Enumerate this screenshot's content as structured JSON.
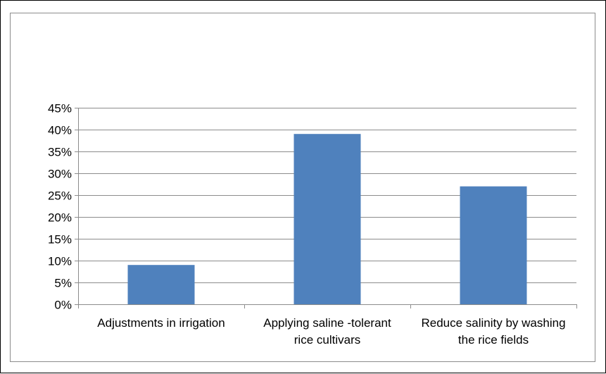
{
  "chart_data": {
    "type": "bar",
    "categories": [
      [
        "Adjustments in irrigation"
      ],
      [
        "Applying saline -tolerant",
        "rice cultivars"
      ],
      [
        "Reduce salinity by washing",
        "the rice fields"
      ]
    ],
    "values": [
      0.09,
      0.39,
      0.27
    ],
    "ylim": [
      0,
      0.45
    ],
    "yticks": [
      0,
      0.05,
      0.1,
      0.15,
      0.2,
      0.25,
      0.3,
      0.35,
      0.4,
      0.45
    ],
    "ytick_labels": [
      "0%",
      "5%",
      "10%",
      "15%",
      "20%",
      "25%",
      "30%",
      "35%",
      "40%",
      "45%"
    ],
    "grid": true,
    "bar_color": "#4f81bd",
    "grid_color": "#8c8c8c",
    "title": "",
    "xlabel": "",
    "ylabel": ""
  }
}
